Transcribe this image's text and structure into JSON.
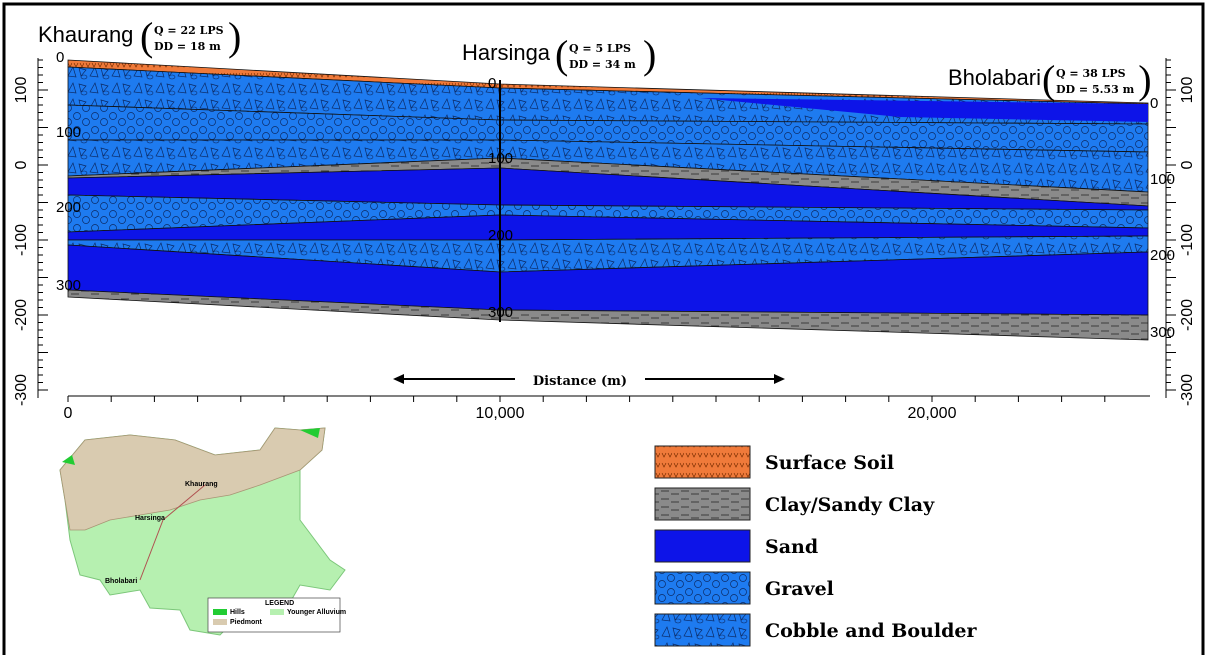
{
  "wells": [
    {
      "name": "Khaurang",
      "q": "Q  = 22 LPS",
      "dd": "DD = 18 m",
      "depth_labels": [
        "0",
        "100",
        "200",
        "300"
      ]
    },
    {
      "name": "Harsinga",
      "q": "Q  = 5 LPS",
      "dd": "DD = 34 m",
      "depth_labels": [
        "0",
        "100",
        "200",
        "300"
      ]
    },
    {
      "name": "Bholabari",
      "q": "Q  = 38 LPS",
      "dd": "DD = 5.53 m",
      "depth_labels": [
        "0",
        "100",
        "200",
        "300"
      ]
    }
  ],
  "left_axis": {
    "ticks": [
      "100",
      "0",
      "-100",
      "-200",
      "-300"
    ]
  },
  "right_axis": {
    "ticks": [
      "100",
      "0",
      "-100",
      "-200",
      "-300"
    ]
  },
  "x_axis": {
    "ticks": [
      "0",
      "10,000",
      "20,000"
    ],
    "title": "Distance (m)"
  },
  "legend": [
    "Surface Soil",
    "Clay/Sandy Clay",
    "Sand",
    "Gravel",
    "Cobble and Boulder"
  ],
  "map": {
    "places": [
      "Khaurang",
      "Harsinga",
      "Bholabari"
    ],
    "legend_title": "LEGEND",
    "legend_items": [
      "Hills",
      "Piedmont",
      "Younger Alluvium"
    ]
  }
}
